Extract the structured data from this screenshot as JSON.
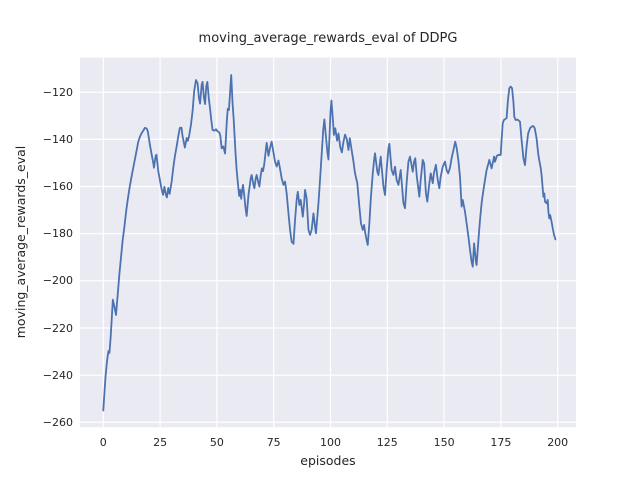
{
  "figure": {
    "title": "moving_average_rewards_eval of DDPG",
    "xlabel": "episodes",
    "ylabel": "moving_average_rewards_eval"
  },
  "colors": {
    "figure_background": "#ffffff",
    "plot_background": "#eaeaf2",
    "grid": "#ffffff",
    "line": "#4c72b0",
    "text": "#262626"
  },
  "chart_data": {
    "type": "line",
    "title": "moving_average_rewards_eval of DDPG",
    "xlabel": "episodes",
    "ylabel": "moving_average_rewards_eval",
    "legend": "none",
    "grid": true,
    "xlim": [
      -10.25,
      208.05
    ],
    "ylim": [
      -262.1,
      -105.3
    ],
    "xticks": [
      0,
      25,
      50,
      75,
      100,
      125,
      150,
      175,
      200
    ],
    "xtick_labels": [
      "0",
      "25",
      "50",
      "75",
      "100",
      "125",
      "150",
      "175",
      "200"
    ],
    "yticks": [
      -120,
      -140,
      -160,
      -180,
      -200,
      -220,
      -240,
      -260
    ],
    "ytick_labels": [
      "−120",
      "−140",
      "−160",
      "−180",
      "−200",
      "−220",
      "−240",
      "−260"
    ],
    "series": [
      {
        "name": "moving_average_rewards_eval",
        "points": [
          [
            0,
            -255
          ],
          [
            0.5,
            -247.5
          ],
          [
            1,
            -240.5
          ],
          [
            1.6,
            -234.5
          ],
          [
            2,
            -231.5
          ],
          [
            2.3,
            -229.8
          ],
          [
            2.7,
            -230.6
          ],
          [
            3.2,
            -224.5
          ],
          [
            3.7,
            -216.5
          ],
          [
            4.2,
            -208
          ],
          [
            4.8,
            -210.5
          ],
          [
            5.6,
            -214.5
          ],
          [
            6.5,
            -204
          ],
          [
            7.1,
            -197
          ],
          [
            7.8,
            -190
          ],
          [
            8.5,
            -183
          ],
          [
            9.3,
            -177
          ],
          [
            10,
            -171
          ],
          [
            10.7,
            -166
          ],
          [
            11.4,
            -161.5
          ],
          [
            12.2,
            -157
          ],
          [
            12.9,
            -153.5
          ],
          [
            13.6,
            -150
          ],
          [
            14.4,
            -146
          ],
          [
            15.4,
            -141
          ],
          [
            16.2,
            -138.7
          ],
          [
            16.9,
            -137.3
          ],
          [
            17.6,
            -136.3
          ],
          [
            18.3,
            -135.1
          ],
          [
            19.1,
            -135.4
          ],
          [
            19.6,
            -136.6
          ],
          [
            20.5,
            -142.2
          ],
          [
            21.3,
            -146.5
          ],
          [
            22,
            -150
          ],
          [
            22.3,
            -152
          ],
          [
            23,
            -147.2
          ],
          [
            23.4,
            -146.5
          ],
          [
            24.2,
            -153.5
          ],
          [
            24.9,
            -157.1
          ],
          [
            25.7,
            -161.3
          ],
          [
            26.3,
            -163.5
          ],
          [
            26.9,
            -160.1
          ],
          [
            27.6,
            -163.7
          ],
          [
            28,
            -164.6
          ],
          [
            28.6,
            -160.6
          ],
          [
            29.2,
            -163.1
          ],
          [
            30.1,
            -157.8
          ],
          [
            30.8,
            -152.1
          ],
          [
            31.5,
            -147.2
          ],
          [
            32.3,
            -142.9
          ],
          [
            33,
            -138.7
          ],
          [
            33.7,
            -135.1
          ],
          [
            34.4,
            -135
          ],
          [
            34.9,
            -138.7
          ],
          [
            35.5,
            -141.5
          ],
          [
            35.9,
            -143.5
          ],
          [
            36.7,
            -139.4
          ],
          [
            37.2,
            -140.6
          ],
          [
            37.7,
            -138.9
          ],
          [
            38.6,
            -133.7
          ],
          [
            39.3,
            -128
          ],
          [
            40,
            -119.5
          ],
          [
            40.8,
            -114.8
          ],
          [
            41.5,
            -116.2
          ],
          [
            42.1,
            -122.4
          ],
          [
            42.6,
            -124.8
          ],
          [
            43.3,
            -116.8
          ],
          [
            43.7,
            -115.6
          ],
          [
            44.3,
            -122.4
          ],
          [
            44.8,
            -125
          ],
          [
            45.3,
            -117.5
          ],
          [
            45.8,
            -115.6
          ],
          [
            46.5,
            -123.2
          ],
          [
            47,
            -127
          ],
          [
            47.5,
            -131.5
          ],
          [
            48.1,
            -136
          ],
          [
            48.9,
            -136.3
          ],
          [
            49.6,
            -135.7
          ],
          [
            50.2,
            -136.5
          ],
          [
            51.1,
            -137.1
          ],
          [
            51.5,
            -138.4
          ],
          [
            52.1,
            -143.8
          ],
          [
            52.8,
            -143
          ],
          [
            53.6,
            -146
          ],
          [
            54.4,
            -131.7
          ],
          [
            54.8,
            -127
          ],
          [
            55.3,
            -127.5
          ],
          [
            56.3,
            -112.7
          ],
          [
            56.9,
            -124.7
          ],
          [
            57.4,
            -131.7
          ],
          [
            57.8,
            -138.8
          ],
          [
            58.2,
            -145.9
          ],
          [
            58.7,
            -153
          ],
          [
            59.1,
            -157.2
          ],
          [
            59.8,
            -164
          ],
          [
            60.2,
            -161.4
          ],
          [
            60.7,
            -165.2
          ],
          [
            61.1,
            -161.4
          ],
          [
            61.5,
            -159.3
          ],
          [
            62.1,
            -164.3
          ],
          [
            62.6,
            -169.2
          ],
          [
            63.1,
            -172.5
          ],
          [
            63.9,
            -163.6
          ],
          [
            64.9,
            -156.5
          ],
          [
            65.3,
            -155.1
          ],
          [
            66.1,
            -159.3
          ],
          [
            66.5,
            -160.7
          ],
          [
            67.1,
            -156.5
          ],
          [
            67.5,
            -155.1
          ],
          [
            68.3,
            -158.6
          ],
          [
            68.7,
            -160
          ],
          [
            69.3,
            -155.1
          ],
          [
            69.8,
            -152.3
          ],
          [
            70.3,
            -153.5
          ],
          [
            70.8,
            -150.8
          ],
          [
            71.3,
            -146.6
          ],
          [
            71.9,
            -141.5
          ],
          [
            72.7,
            -147
          ],
          [
            73.4,
            -143.5
          ],
          [
            74.1,
            -141
          ],
          [
            74.7,
            -144.5
          ],
          [
            75.6,
            -149.5
          ],
          [
            76.3,
            -151.5
          ],
          [
            77.1,
            -149
          ],
          [
            77.8,
            -152.5
          ],
          [
            78.5,
            -156.5
          ],
          [
            79.3,
            -159.3
          ],
          [
            80,
            -157.9
          ],
          [
            80.7,
            -162.9
          ],
          [
            81.5,
            -171.4
          ],
          [
            82.2,
            -178.4
          ],
          [
            82.9,
            -183.4
          ],
          [
            83.7,
            -184.3
          ],
          [
            84.4,
            -174.2
          ],
          [
            85.1,
            -165.7
          ],
          [
            85.6,
            -162.2
          ],
          [
            86.3,
            -167.8
          ],
          [
            86.9,
            -165.7
          ],
          [
            87.8,
            -172.8
          ],
          [
            88.4,
            -167.1
          ],
          [
            88.8,
            -161.4
          ],
          [
            89.5,
            -165
          ],
          [
            90.3,
            -178.4
          ],
          [
            91,
            -180.5
          ],
          [
            91.7,
            -178.4
          ],
          [
            92.5,
            -171.4
          ],
          [
            93.2,
            -177
          ],
          [
            93.6,
            -179.8
          ],
          [
            94.7,
            -167.1
          ],
          [
            95.4,
            -157
          ],
          [
            96.2,
            -145
          ],
          [
            96.8,
            -136
          ],
          [
            97.3,
            -131.5
          ],
          [
            98,
            -139
          ],
          [
            98.7,
            -146
          ],
          [
            99.1,
            -148.5
          ],
          [
            99.6,
            -138
          ],
          [
            100,
            -128.5
          ],
          [
            100.4,
            -123.5
          ],
          [
            101,
            -131
          ],
          [
            101.5,
            -138.1
          ],
          [
            102.1,
            -135.3
          ],
          [
            102.9,
            -140.5
          ],
          [
            103.5,
            -137.5
          ],
          [
            104.3,
            -143.3
          ],
          [
            105,
            -145.5
          ],
          [
            105.7,
            -141
          ],
          [
            106.4,
            -138
          ],
          [
            107.2,
            -140
          ],
          [
            107.9,
            -144.5
          ],
          [
            108.5,
            -139.5
          ],
          [
            109.3,
            -144.5
          ],
          [
            110.1,
            -149.4
          ],
          [
            110.8,
            -154.4
          ],
          [
            111.8,
            -158.6
          ],
          [
            112.7,
            -168.5
          ],
          [
            113.4,
            -175.6
          ],
          [
            114.2,
            -178.4
          ],
          [
            114.8,
            -176.3
          ],
          [
            115.3,
            -179.8
          ],
          [
            115.9,
            -182.7
          ],
          [
            116.4,
            -184.8
          ],
          [
            117.1,
            -175.6
          ],
          [
            117.8,
            -164.3
          ],
          [
            118.6,
            -154.4
          ],
          [
            119.2,
            -148.7
          ],
          [
            119.6,
            -145.9
          ],
          [
            120.6,
            -153.7
          ],
          [
            121.1,
            -155.1
          ],
          [
            122.1,
            -147.3
          ],
          [
            123.3,
            -160
          ],
          [
            124,
            -163.6
          ],
          [
            124.7,
            -153
          ],
          [
            125.5,
            -143.8
          ],
          [
            125.9,
            -141.9
          ],
          [
            126.9,
            -153
          ],
          [
            127.7,
            -155.1
          ],
          [
            128.4,
            -151.6
          ],
          [
            129.1,
            -157.2
          ],
          [
            129.9,
            -159.3
          ],
          [
            130.9,
            -153
          ],
          [
            132.1,
            -167.1
          ],
          [
            132.8,
            -169.2
          ],
          [
            133.5,
            -158.6
          ],
          [
            134.3,
            -149.4
          ],
          [
            135,
            -147.3
          ],
          [
            136.2,
            -153.7
          ],
          [
            136.8,
            -149.4
          ],
          [
            137.3,
            -148
          ],
          [
            138,
            -155.8
          ],
          [
            139.1,
            -164.3
          ],
          [
            139.7,
            -157.2
          ],
          [
            140.6,
            -148.7
          ],
          [
            141.2,
            -150.2
          ],
          [
            142,
            -162.9
          ],
          [
            142.6,
            -166.4
          ],
          [
            143.5,
            -158.6
          ],
          [
            144.1,
            -154.4
          ],
          [
            145,
            -158.6
          ],
          [
            145.5,
            -154.4
          ],
          [
            146.4,
            -150.8
          ],
          [
            147.2,
            -157.2
          ],
          [
            147.9,
            -160.7
          ],
          [
            148.5,
            -155.8
          ],
          [
            149.4,
            -151.6
          ],
          [
            150.4,
            -149.4
          ],
          [
            151.1,
            -153
          ],
          [
            151.8,
            -154.4
          ],
          [
            152.6,
            -152
          ],
          [
            153.3,
            -148
          ],
          [
            154,
            -145
          ],
          [
            154.9,
            -141
          ],
          [
            155.5,
            -143.5
          ],
          [
            156.3,
            -149
          ],
          [
            157,
            -156
          ],
          [
            157.7,
            -168.5
          ],
          [
            158.2,
            -165.7
          ],
          [
            159.2,
            -170.7
          ],
          [
            159.9,
            -175.6
          ],
          [
            160.7,
            -181.3
          ],
          [
            161.4,
            -186.9
          ],
          [
            162.1,
            -191.9
          ],
          [
            162.6,
            -194
          ],
          [
            163.2,
            -184.1
          ],
          [
            164,
            -191.9
          ],
          [
            164.3,
            -193.3
          ],
          [
            165.1,
            -182.7
          ],
          [
            165.8,
            -174.2
          ],
          [
            166.5,
            -167.1
          ],
          [
            167.3,
            -161.5
          ],
          [
            168,
            -157.2
          ],
          [
            168.7,
            -153
          ],
          [
            169.5,
            -150.2
          ],
          [
            169.9,
            -148.7
          ],
          [
            170.9,
            -152.3
          ],
          [
            172,
            -147.3
          ],
          [
            172.4,
            -149.5
          ],
          [
            173.2,
            -147
          ],
          [
            173.9,
            -146.6
          ],
          [
            174.9,
            -146.6
          ],
          [
            175.3,
            -140.2
          ],
          [
            175.8,
            -133.2
          ],
          [
            176.3,
            -131.8
          ],
          [
            177.5,
            -131
          ],
          [
            178.1,
            -123.3
          ],
          [
            178.7,
            -118.3
          ],
          [
            179.3,
            -117.6
          ],
          [
            179.9,
            -118.3
          ],
          [
            180.5,
            -124
          ],
          [
            180.9,
            -130.4
          ],
          [
            181.5,
            -131.8
          ],
          [
            182.3,
            -131.6
          ],
          [
            183.4,
            -132.5
          ],
          [
            184.1,
            -140.2
          ],
          [
            184.9,
            -148
          ],
          [
            185.6,
            -150.9
          ],
          [
            186.3,
            -143.1
          ],
          [
            187,
            -137.4
          ],
          [
            187.8,
            -135.3
          ],
          [
            188.5,
            -134.6
          ],
          [
            189.2,
            -134.3
          ],
          [
            189.9,
            -135.3
          ],
          [
            190.7,
            -139.6
          ],
          [
            191.4,
            -146
          ],
          [
            191.9,
            -149
          ],
          [
            192.5,
            -152
          ],
          [
            192.9,
            -155.1
          ],
          [
            193.4,
            -160.8
          ],
          [
            193.7,
            -164.3
          ],
          [
            194.1,
            -162.9
          ],
          [
            194.4,
            -166.4
          ],
          [
            195.1,
            -167.1
          ],
          [
            195.6,
            -165.7
          ],
          [
            195.9,
            -170.7
          ],
          [
            196.3,
            -173.5
          ],
          [
            196.7,
            -172.1
          ],
          [
            197.3,
            -174.9
          ],
          [
            197.8,
            -177.7
          ],
          [
            198.4,
            -180.6
          ],
          [
            199,
            -182.4
          ]
        ]
      }
    ]
  }
}
